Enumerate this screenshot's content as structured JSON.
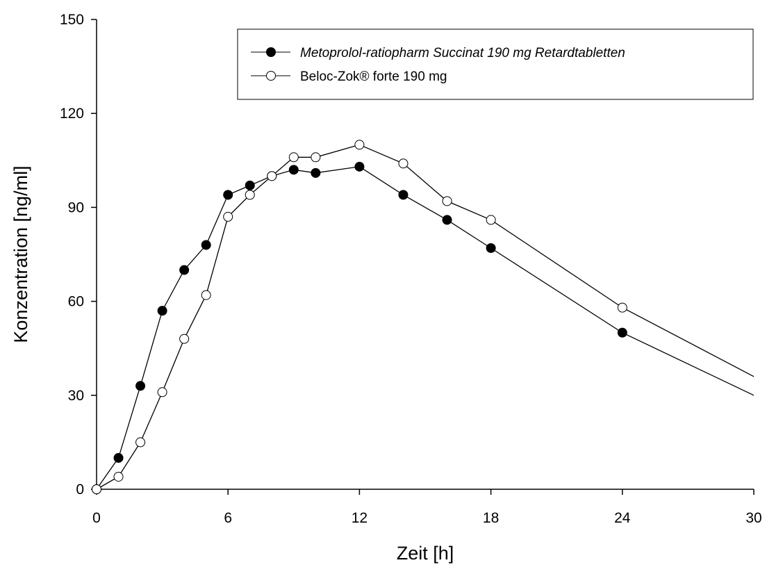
{
  "chart_data": {
    "type": "line",
    "title": "",
    "xlabel": "Zeit [h]",
    "ylabel": "Konzentration [ng/ml]",
    "xlim": [
      0,
      30
    ],
    "ylim": [
      0,
      150
    ],
    "xticks": [
      "0",
      "6",
      "12",
      "18",
      "24",
      "30"
    ],
    "yticks": [
      "0",
      "30",
      "60",
      "90",
      "120",
      "150"
    ],
    "grid": false,
    "legend_position": "top-right",
    "series": [
      {
        "name": "Metoprolol-ratiopharm Succinat 190 mg Retardtabletten",
        "marker": "filled-circle",
        "color": "#000000",
        "x": [
          0,
          1,
          2,
          3,
          4,
          5,
          6,
          7,
          8,
          9,
          10,
          12,
          14,
          16,
          18,
          24,
          30
        ],
        "y": [
          0,
          10,
          33,
          57,
          70,
          78,
          94,
          97,
          100,
          102,
          101,
          103,
          94,
          86,
          77,
          50,
          30
        ],
        "marker_count": 16
      },
      {
        "name": "Beloc-Zok® forte 190 mg",
        "marker": "open-circle",
        "color": "#000000",
        "x": [
          0,
          1,
          2,
          3,
          4,
          5,
          6,
          7,
          8,
          9,
          10,
          12,
          14,
          16,
          18,
          24,
          30
        ],
        "y": [
          0,
          4,
          15,
          31,
          48,
          62,
          87,
          94,
          100,
          106,
          106,
          110,
          104,
          92,
          86,
          58,
          36
        ],
        "marker_count": 16
      }
    ]
  }
}
